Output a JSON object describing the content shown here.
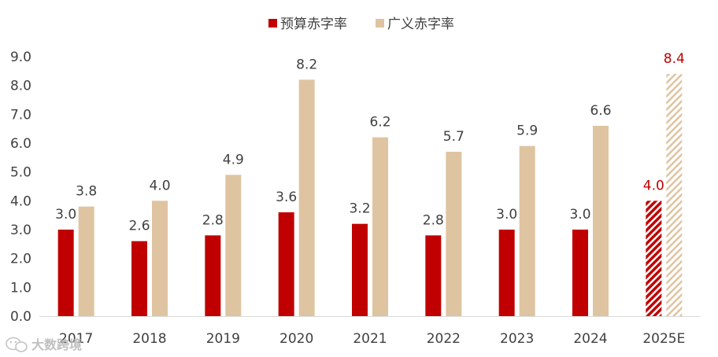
{
  "chart_data": {
    "type": "bar",
    "title": "",
    "xlabel": "",
    "ylabel": "",
    "ylim": [
      0,
      9
    ],
    "yticks": [
      "0.0",
      "1.0",
      "2.0",
      "3.0",
      "4.0",
      "5.0",
      "6.0",
      "7.0",
      "8.0",
      "9.0"
    ],
    "grid": false,
    "legend_position": "top-center",
    "categories": [
      "2017",
      "2018",
      "2019",
      "2020",
      "2021",
      "2022",
      "2023",
      "2024",
      "2025E"
    ],
    "series": [
      {
        "name": "预算赤字率",
        "color": "#C00000",
        "values": [
          3.0,
          2.6,
          2.8,
          3.6,
          3.2,
          2.8,
          3.0,
          3.0,
          4.0
        ],
        "labels": [
          "3.0",
          "2.6",
          "2.8",
          "3.6",
          "3.2",
          "2.8",
          "3.0",
          "3.0",
          "4.0"
        ],
        "estimate_last": true,
        "estimate_label_color": "#C00000"
      },
      {
        "name": "广义赤字率",
        "color": "#DFC4A1",
        "values": [
          3.8,
          4.0,
          4.9,
          8.2,
          6.2,
          5.7,
          5.9,
          6.6,
          8.4
        ],
        "labels": [
          "3.8",
          "4.0",
          "4.9",
          "8.2",
          "6.2",
          "5.7",
          "5.9",
          "6.6",
          "8.4"
        ],
        "estimate_last": true,
        "estimate_label_color": "#C00000"
      }
    ],
    "label_color": "#404040"
  },
  "watermark": {
    "icon": "wechat-icon",
    "text": "大数跨境"
  }
}
